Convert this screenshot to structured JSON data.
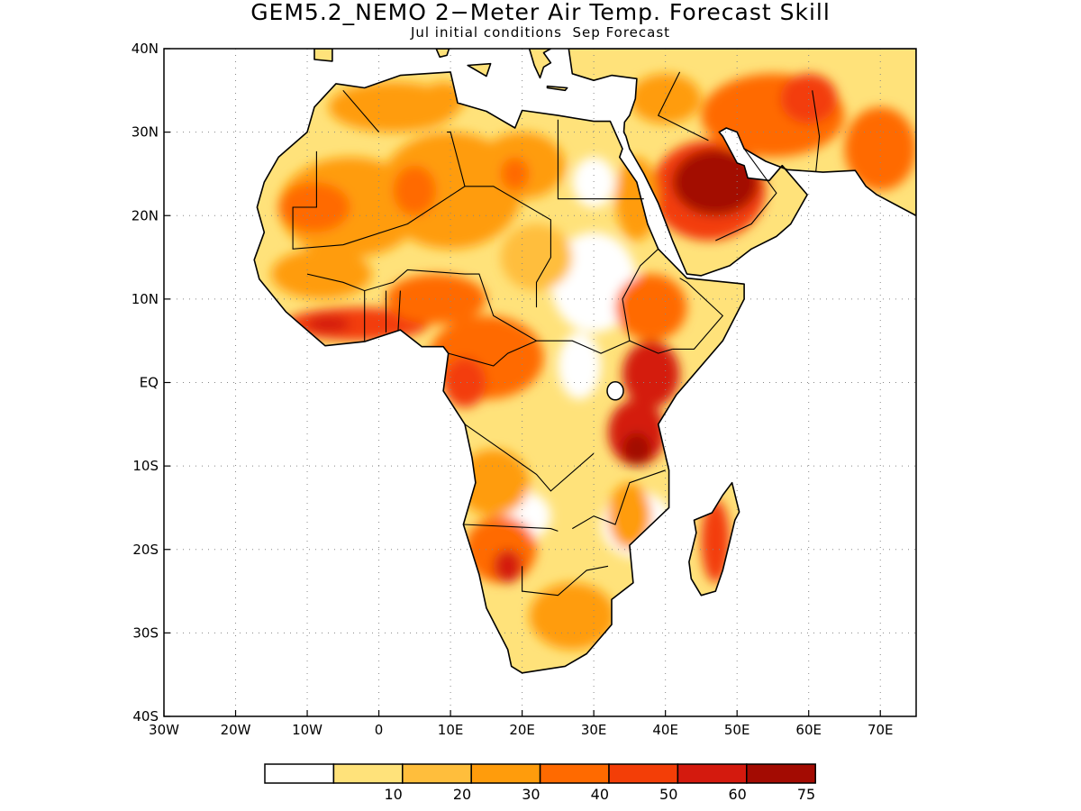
{
  "title": "GEM5.2_NEMO 2−Meter Air Temp. Forecast Skill",
  "subtitle": "Jul initial conditions  Sep Forecast",
  "map": {
    "region": "Africa and Arabian Peninsula",
    "lon_range": [
      -30,
      75
    ],
    "lat_range": [
      -40,
      40
    ],
    "x_ticks": [
      {
        "value": -30,
        "label": "30W"
      },
      {
        "value": -20,
        "label": "20W"
      },
      {
        "value": -10,
        "label": "10W"
      },
      {
        "value": 0,
        "label": "0"
      },
      {
        "value": 10,
        "label": "10E"
      },
      {
        "value": 20,
        "label": "20E"
      },
      {
        "value": 30,
        "label": "30E"
      },
      {
        "value": 40,
        "label": "40E"
      },
      {
        "value": 50,
        "label": "50E"
      },
      {
        "value": 60,
        "label": "60E"
      },
      {
        "value": 70,
        "label": "70E"
      }
    ],
    "y_ticks": [
      {
        "value": 40,
        "label": "40N"
      },
      {
        "value": 30,
        "label": "30N"
      },
      {
        "value": 20,
        "label": "20N"
      },
      {
        "value": 10,
        "label": "10N"
      },
      {
        "value": 0,
        "label": "EQ"
      },
      {
        "value": -10,
        "label": "10S"
      },
      {
        "value": -20,
        "label": "20S"
      },
      {
        "value": -30,
        "label": "30S"
      },
      {
        "value": -40,
        "label": "40S"
      }
    ],
    "grid": "dotted",
    "border_color": "#000000"
  },
  "colorbar": {
    "bins": [
      {
        "color": "#ffffff"
      },
      {
        "color": "#ffe27a",
        "label": "10"
      },
      {
        "color": "#ffbe3c",
        "label": "20"
      },
      {
        "color": "#ff9c0c",
        "label": "30"
      },
      {
        "color": "#ff6a00",
        "label": "40"
      },
      {
        "color": "#f33e07",
        "label": "50"
      },
      {
        "color": "#d41a0e",
        "label": "60"
      },
      {
        "color": "#a30b02",
        "label": "75"
      }
    ]
  },
  "skill_regions": [
    {
      "name": "sahara-west",
      "lon": -4,
      "lat": 21,
      "rx": 10,
      "ry": 6,
      "level": 3
    },
    {
      "name": "sahara-central",
      "lon": 10,
      "lat": 23,
      "rx": 10,
      "ry": 7,
      "level": 3
    },
    {
      "name": "niger-core",
      "lon": 5,
      "lat": 23,
      "rx": 3,
      "ry": 3,
      "level": 4
    },
    {
      "name": "mauritania-core",
      "lon": -9,
      "lat": 21,
      "rx": 5,
      "ry": 3,
      "level": 4
    },
    {
      "name": "libya",
      "lon": 20,
      "lat": 26,
      "rx": 6,
      "ry": 4,
      "level": 3
    },
    {
      "name": "libya-core",
      "lon": 19,
      "lat": 25,
      "rx": 2,
      "ry": 2,
      "level": 4
    },
    {
      "name": "maghreb",
      "lon": 2,
      "lat": 33,
      "rx": 9,
      "ry": 3,
      "level": 3
    },
    {
      "name": "tunisia",
      "lon": 9,
      "lat": 34,
      "rx": 3,
      "ry": 2,
      "level": 3
    },
    {
      "name": "sahel-west",
      "lon": -8,
      "lat": 13,
      "rx": 7,
      "ry": 3,
      "level": 3
    },
    {
      "name": "guinea-coast",
      "lon": -3,
      "lat": 7,
      "rx": 10,
      "ry": 2,
      "level": 5
    },
    {
      "name": "guinea-core",
      "lon": -7,
      "lat": 7,
      "rx": 3,
      "ry": 1,
      "level": 6
    },
    {
      "name": "nigeria",
      "lon": 8,
      "lat": 10,
      "rx": 7,
      "ry": 3,
      "level": 4
    },
    {
      "name": "central-africa",
      "lon": 15,
      "lat": 3,
      "rx": 8,
      "ry": 5,
      "level": 4
    },
    {
      "name": "congo-west",
      "lon": 12,
      "lat": 0,
      "rx": 3,
      "ry": 3,
      "level": 5
    },
    {
      "name": "chad-sudan",
      "lon": 22,
      "lat": 15,
      "rx": 5,
      "ry": 4,
      "level": 2
    },
    {
      "name": "ethiopia",
      "lon": 38,
      "lat": 9,
      "rx": 5,
      "ry": 4,
      "level": 4
    },
    {
      "name": "kenya",
      "lon": 38,
      "lat": 1,
      "rx": 4,
      "ry": 4,
      "level": 6
    },
    {
      "name": "tanzania",
      "lon": 36,
      "lat": -6,
      "rx": 4,
      "ry": 4,
      "level": 6
    },
    {
      "name": "tanzania-core",
      "lon": 36,
      "lat": -8,
      "rx": 2,
      "ry": 2,
      "level": 7
    },
    {
      "name": "angola",
      "lon": 16,
      "lat": -12,
      "rx": 5,
      "ry": 4,
      "level": 3
    },
    {
      "name": "namibia",
      "lon": 17,
      "lat": -20,
      "rx": 5,
      "ry": 4,
      "level": 4
    },
    {
      "name": "namibia-core",
      "lon": 18,
      "lat": -22,
      "rx": 2,
      "ry": 2,
      "level": 6
    },
    {
      "name": "south-africa",
      "lon": 27,
      "lat": -28,
      "rx": 6,
      "ry": 4,
      "level": 3
    },
    {
      "name": "mozambique",
      "lon": 35,
      "lat": -16,
      "rx": 3,
      "ry": 4,
      "level": 3
    },
    {
      "name": "madagascar",
      "lon": 47,
      "lat": -19,
      "rx": 2,
      "ry": 5,
      "level": 5
    },
    {
      "name": "arabia",
      "lon": 46,
      "lat": 23,
      "rx": 8,
      "ry": 6,
      "level": 5
    },
    {
      "name": "arabia-core",
      "lon": 47,
      "lat": 24,
      "rx": 6,
      "ry": 4,
      "level": 7
    },
    {
      "name": "iran",
      "lon": 55,
      "lat": 32,
      "rx": 10,
      "ry": 5,
      "level": 4
    },
    {
      "name": "iran-core",
      "lon": 60,
      "lat": 34,
      "rx": 4,
      "ry": 3,
      "level": 5
    },
    {
      "name": "pakistan",
      "lon": 70,
      "lat": 28,
      "rx": 5,
      "ry": 5,
      "level": 4
    },
    {
      "name": "egypt-redsea",
      "lon": 36,
      "lat": 22,
      "rx": 3,
      "ry": 5,
      "level": 3
    },
    {
      "name": "mideast",
      "lon": 40,
      "lat": 34,
      "rx": 5,
      "ry": 3,
      "level": 3
    }
  ]
}
